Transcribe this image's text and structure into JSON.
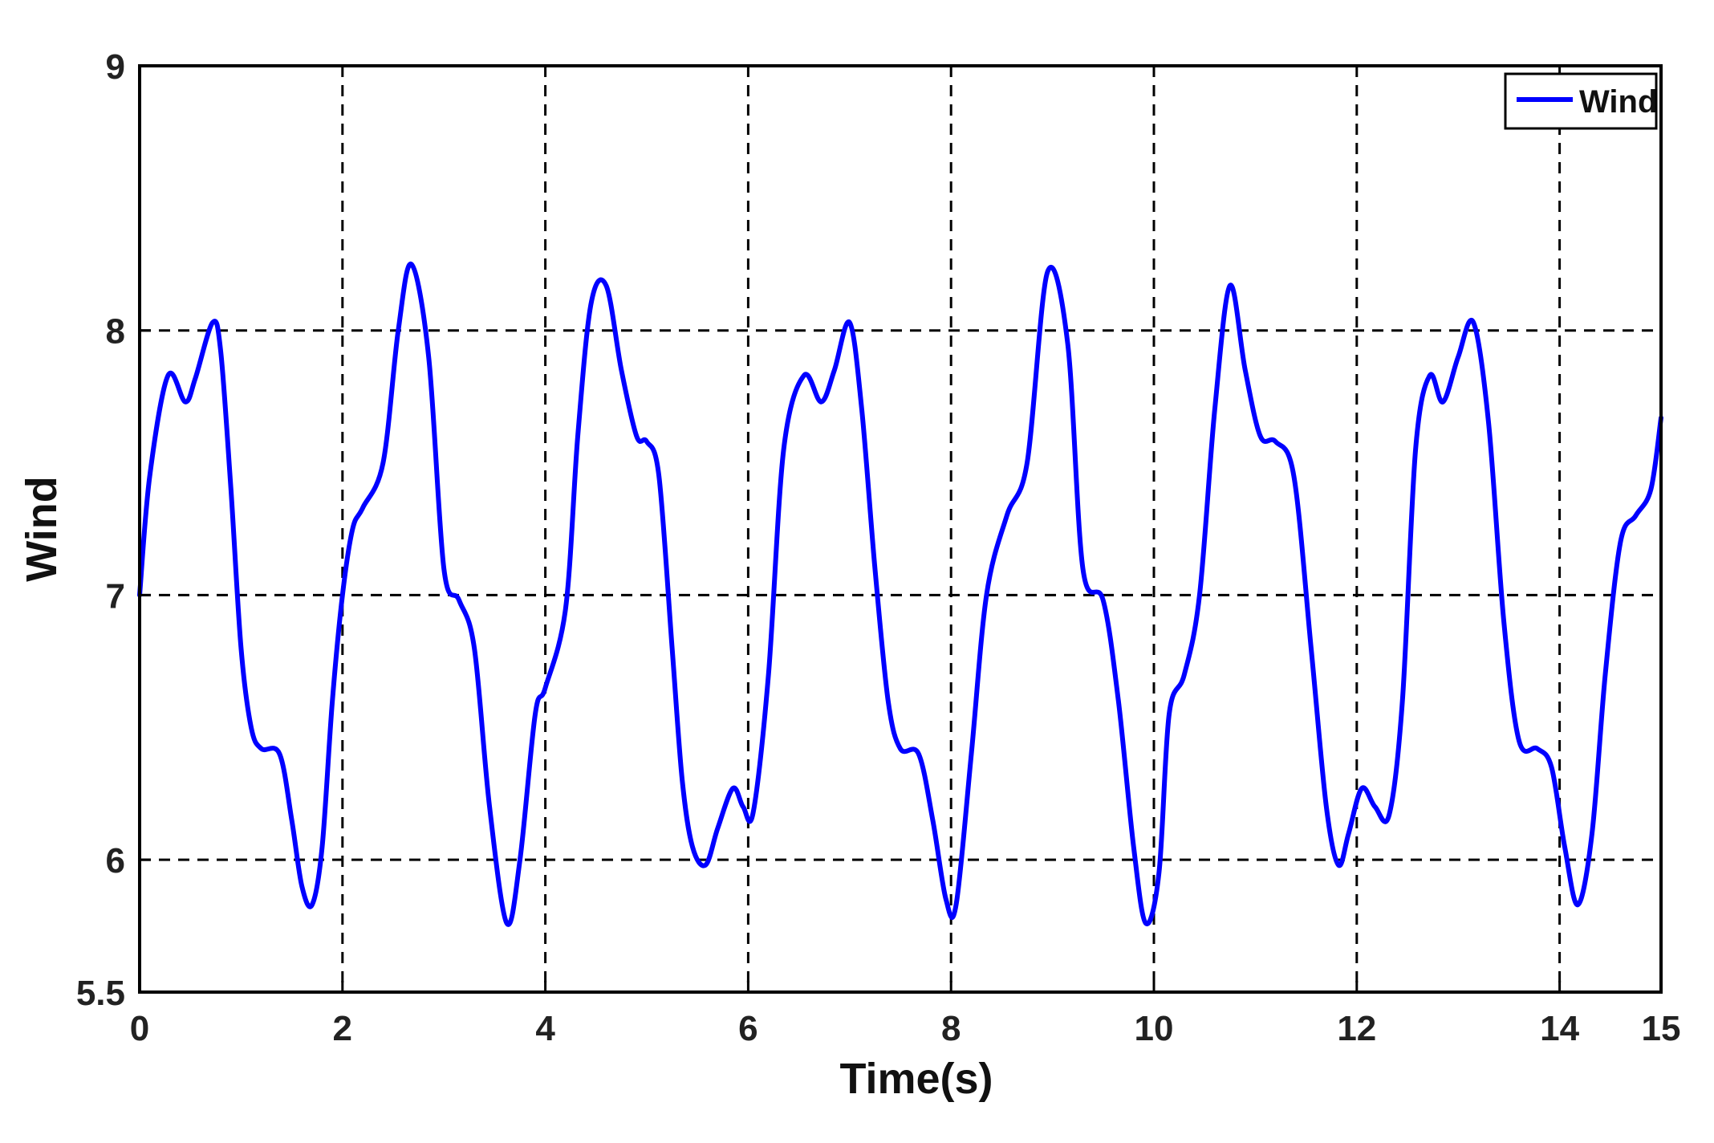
{
  "chart_data": {
    "type": "line",
    "title": "",
    "xlabel": "Time(s)",
    "ylabel": "Wind",
    "xlim": [
      0,
      15
    ],
    "ylim": [
      5.5,
      9
    ],
    "xticks": [
      0,
      2,
      4,
      6,
      8,
      10,
      12,
      14,
      15
    ],
    "xtick_labels": [
      "0",
      "2",
      "4",
      "6",
      "8",
      "10",
      "12",
      "14",
      "15"
    ],
    "yticks": [
      5.5,
      6,
      7,
      8,
      9
    ],
    "ytick_labels": [
      "5.5",
      "6",
      "7",
      "8",
      "9"
    ],
    "grid": true,
    "grid_style": "dashed",
    "legend": {
      "position": "top-right",
      "entries": [
        "Wind"
      ]
    },
    "colors": {
      "series": "#0000ff",
      "axes": "#000000",
      "grid": "#000000",
      "background": "#ffffff"
    },
    "series": [
      {
        "name": "Wind",
        "color": "#0000ff",
        "x": [
          0,
          0.1,
          0.28,
          0.45,
          0.55,
          0.72,
          0.8,
          0.9,
          1.0,
          1.1,
          1.2,
          1.38,
          1.5,
          1.6,
          1.7,
          1.8,
          1.9,
          2.0,
          2.1,
          2.2,
          2.4,
          2.55,
          2.68,
          2.85,
          3.0,
          3.15,
          3.3,
          3.45,
          3.62,
          3.75,
          3.9,
          4.0,
          4.2,
          4.32,
          4.45,
          4.6,
          4.75,
          4.9,
          5.0,
          5.12,
          5.25,
          5.35,
          5.45,
          5.58,
          5.7,
          5.85,
          5.95,
          6.05,
          6.2,
          6.35,
          6.55,
          6.72,
          6.85,
          7.0,
          7.12,
          7.25,
          7.38,
          7.5,
          7.68,
          7.82,
          7.95,
          8.05,
          8.2,
          8.35,
          8.55,
          8.75,
          8.95,
          9.15,
          9.3,
          9.5,
          9.65,
          9.8,
          9.92,
          10.05,
          10.15,
          10.3,
          10.45,
          10.6,
          10.75,
          10.9,
          11.05,
          11.2,
          11.38,
          11.55,
          11.7,
          11.82,
          11.92,
          12.05,
          12.18,
          12.32,
          12.45,
          12.58,
          12.72,
          12.85,
          13.0,
          13.15,
          13.3,
          13.45,
          13.6,
          13.78,
          13.92,
          14.05,
          14.18,
          14.32,
          14.45,
          14.6,
          14.75,
          14.9,
          15.0
        ],
        "values": [
          7.0,
          7.45,
          7.83,
          7.73,
          7.82,
          8.03,
          7.92,
          7.4,
          6.8,
          6.5,
          6.42,
          6.4,
          6.15,
          5.9,
          5.83,
          6.05,
          6.6,
          7.0,
          7.25,
          7.33,
          7.5,
          8.0,
          8.25,
          7.9,
          7.1,
          6.98,
          6.8,
          6.2,
          5.76,
          6.0,
          6.55,
          6.65,
          6.95,
          7.6,
          8.1,
          8.17,
          7.85,
          7.6,
          7.58,
          7.45,
          6.8,
          6.3,
          6.05,
          5.98,
          6.12,
          6.27,
          6.2,
          6.18,
          6.7,
          7.55,
          7.83,
          7.73,
          7.85,
          8.03,
          7.7,
          7.1,
          6.6,
          6.42,
          6.4,
          6.15,
          5.85,
          5.83,
          6.4,
          7.0,
          7.3,
          7.5,
          8.22,
          7.95,
          7.1,
          6.98,
          6.6,
          6.05,
          5.76,
          5.95,
          6.55,
          6.7,
          7.0,
          7.7,
          8.17,
          7.85,
          7.6,
          7.58,
          7.45,
          6.8,
          6.2,
          5.98,
          6.1,
          6.27,
          6.2,
          6.17,
          6.6,
          7.55,
          7.83,
          7.73,
          7.9,
          8.03,
          7.65,
          6.9,
          6.45,
          6.42,
          6.35,
          6.05,
          5.83,
          6.1,
          6.7,
          7.2,
          7.3,
          7.4,
          7.67
        ]
      }
    ]
  }
}
